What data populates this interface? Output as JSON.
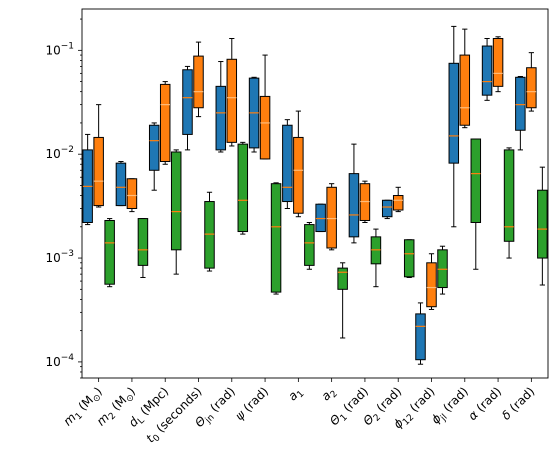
{
  "chart_data": {
    "type": "box",
    "title": "",
    "xlabel": "",
    "ylabel": "",
    "yscale": "log",
    "ylim": [
      7e-05,
      0.25
    ],
    "y_ticks": [
      {
        "value": 0.0001,
        "base": "10",
        "exp": "−4"
      },
      {
        "value": 0.001,
        "base": "10",
        "exp": "−3"
      },
      {
        "value": 0.01,
        "base": "10",
        "exp": "−2"
      },
      {
        "value": 0.1,
        "base": "10",
        "exp": "−1"
      }
    ],
    "categories": [
      {
        "main": "m",
        "sub": "1",
        "rest": " (M",
        "sub2": "⊙",
        "end": ")"
      },
      {
        "main": "m",
        "sub": "2",
        "rest": " (M",
        "sub2": "⊙",
        "end": ")"
      },
      {
        "main": "d",
        "sub": "L",
        "rest": " (Mpc)",
        "sub2": "",
        "end": ""
      },
      {
        "main": "t",
        "sub": "0",
        "rest": " (seconds)",
        "sub2": "",
        "end": ""
      },
      {
        "main": "Θ",
        "sub": "jn",
        "rest": " (rad)",
        "sub2": "",
        "end": ""
      },
      {
        "main": "ψ",
        "sub": "",
        "rest": " (rad)",
        "sub2": "",
        "end": ""
      },
      {
        "main": "a",
        "sub": "1",
        "rest": "",
        "sub2": "",
        "end": ""
      },
      {
        "main": "a",
        "sub": "2",
        "rest": "",
        "sub2": "",
        "end": ""
      },
      {
        "main": "Θ",
        "sub": "1",
        "rest": " (rad)",
        "sub2": "",
        "end": ""
      },
      {
        "main": "Θ",
        "sub": "2",
        "rest": " (rad)",
        "sub2": "",
        "end": ""
      },
      {
        "main": "ϕ",
        "sub": "12",
        "rest": " (rad)",
        "sub2": "",
        "end": ""
      },
      {
        "main": "ϕ",
        "sub": "jl",
        "rest": " (rad)",
        "sub2": "",
        "end": ""
      },
      {
        "main": "α",
        "sub": "",
        "rest": " (rad)",
        "sub2": "",
        "end": ""
      },
      {
        "main": "δ",
        "sub": "",
        "rest": " (rad)",
        "sub2": "",
        "end": ""
      }
    ],
    "colors": {
      "blue": "#1f77b4",
      "orange": "#ff7f0e",
      "green": "#2ca02c",
      "median_on_dark": "#ff7f0e",
      "median_on_orange": "#ffbb78"
    },
    "series": [
      {
        "color": "#1f77b4",
        "boxes": [
          {
            "min": 0.0021,
            "q1": 0.0022,
            "median": 0.0049,
            "q3": 0.011,
            "max": 0.0155
          },
          {
            "min": 0.0032,
            "q1": 0.0032,
            "median": 0.0048,
            "q3": 0.0082,
            "max": 0.0085
          },
          {
            "min": 0.0045,
            "q1": 0.007,
            "median": 0.0135,
            "q3": 0.019,
            "max": 0.02
          },
          {
            "min": 0.011,
            "q1": 0.0155,
            "median": 0.035,
            "q3": 0.065,
            "max": 0.07
          },
          {
            "min": 0.0105,
            "q1": 0.011,
            "median": 0.025,
            "q3": 0.045,
            "max": 0.078
          },
          {
            "min": 0.0105,
            "q1": 0.0115,
            "median": 0.025,
            "q3": 0.054,
            "max": 0.055
          },
          {
            "min": 0.003,
            "q1": 0.0035,
            "median": 0.0048,
            "q3": 0.019,
            "max": 0.0215
          },
          {
            "min": 0.0018,
            "q1": 0.0018,
            "median": 0.0024,
            "q3": 0.0033,
            "max": 0.0033
          },
          {
            "min": 0.0014,
            "q1": 0.0016,
            "median": 0.0026,
            "q3": 0.0065,
            "max": 0.0125
          },
          {
            "min": 0.0024,
            "q1": 0.0025,
            "median": 0.0031,
            "q3": 0.0036,
            "max": 0.0036
          },
          {
            "min": 9.5e-05,
            "q1": 0.000105,
            "median": 0.00022,
            "q3": 0.00029,
            "max": 0.00037
          },
          {
            "min": 0.002,
            "q1": 0.0082,
            "median": 0.015,
            "q3": 0.075,
            "max": 0.17
          },
          {
            "min": 0.033,
            "q1": 0.037,
            "median": 0.05,
            "q3": 0.11,
            "max": 0.13
          },
          {
            "min": 0.011,
            "q1": 0.017,
            "median": 0.03,
            "q3": 0.055,
            "max": 0.056
          }
        ]
      },
      {
        "color": "#ff7f0e",
        "boxes": [
          {
            "min": 0.0031,
            "q1": 0.0032,
            "median": 0.0055,
            "q3": 0.0145,
            "max": 0.03
          },
          {
            "min": 0.0028,
            "q1": 0.003,
            "median": 0.004,
            "q3": 0.0058,
            "max": 0.0058
          },
          {
            "min": 0.008,
            "q1": 0.0085,
            "median": 0.03,
            "q3": 0.047,
            "max": 0.05
          },
          {
            "min": 0.023,
            "q1": 0.028,
            "median": 0.04,
            "q3": 0.088,
            "max": 0.12
          },
          {
            "min": 0.012,
            "q1": 0.013,
            "median": 0.035,
            "q3": 0.082,
            "max": 0.13
          },
          {
            "min": 0.009,
            "q1": 0.009,
            "median": 0.02,
            "q3": 0.036,
            "max": 0.09
          },
          {
            "min": 0.0025,
            "q1": 0.0027,
            "median": 0.007,
            "q3": 0.0145,
            "max": 0.026
          },
          {
            "min": 0.0012,
            "q1": 0.00125,
            "median": 0.0024,
            "q3": 0.0048,
            "max": 0.0052
          },
          {
            "min": 0.0022,
            "q1": 0.0023,
            "median": 0.0035,
            "q3": 0.0052,
            "max": 0.0055
          },
          {
            "min": 0.0028,
            "q1": 0.0029,
            "median": 0.0036,
            "q3": 0.004,
            "max": 0.0048
          },
          {
            "min": 0.00032,
            "q1": 0.00034,
            "median": 0.00052,
            "q3": 0.0009,
            "max": 0.0011
          },
          {
            "min": 0.018,
            "q1": 0.019,
            "median": 0.028,
            "q3": 0.09,
            "max": 0.16
          },
          {
            "min": 0.04,
            "q1": 0.045,
            "median": 0.06,
            "q3": 0.13,
            "max": 0.135
          },
          {
            "min": 0.026,
            "q1": 0.028,
            "median": 0.04,
            "q3": 0.068,
            "max": 0.095
          }
        ]
      },
      {
        "color": "#2ca02c",
        "boxes": [
          {
            "min": 0.00053,
            "q1": 0.00056,
            "median": 0.0014,
            "q3": 0.0023,
            "max": 0.0024
          },
          {
            "min": 0.00065,
            "q1": 0.00085,
            "median": 0.0012,
            "q3": 0.0024,
            "max": 0.0024
          },
          {
            "min": 0.0007,
            "q1": 0.0012,
            "median": 0.0028,
            "q3": 0.0105,
            "max": 0.011
          },
          {
            "min": 0.00075,
            "q1": 0.0008,
            "median": 0.0017,
            "q3": 0.0035,
            "max": 0.0043
          },
          {
            "min": 0.0017,
            "q1": 0.0018,
            "median": 0.0036,
            "q3": 0.0125,
            "max": 0.013
          },
          {
            "min": 0.00045,
            "q1": 0.00047,
            "median": 0.002,
            "q3": 0.0052,
            "max": 0.0053
          },
          {
            "min": 0.00078,
            "q1": 0.00085,
            "median": 0.0014,
            "q3": 0.0021,
            "max": 0.0022
          },
          {
            "min": 0.00017,
            "q1": 0.0005,
            "median": 0.00073,
            "q3": 0.0008,
            "max": 0.0009
          },
          {
            "min": 0.00053,
            "q1": 0.00088,
            "median": 0.0012,
            "q3": 0.0016,
            "max": 0.0019
          },
          {
            "min": 0.00065,
            "q1": 0.00066,
            "median": 0.0011,
            "q3": 0.0015,
            "max": 0.0015
          },
          {
            "min": 0.00045,
            "q1": 0.00052,
            "median": 0.00078,
            "q3": 0.0012,
            "max": 0.0013
          },
          {
            "min": 0.00078,
            "q1": 0.0022,
            "median": 0.0065,
            "q3": 0.014,
            "max": 0.014
          },
          {
            "min": 0.001,
            "q1": 0.00145,
            "median": 0.002,
            "q3": 0.011,
            "max": 0.0115
          },
          {
            "min": 0.00055,
            "q1": 0.001,
            "median": 0.0019,
            "q3": 0.0045,
            "max": 0.0075
          }
        ]
      }
    ],
    "grid": false,
    "legend": "none"
  }
}
